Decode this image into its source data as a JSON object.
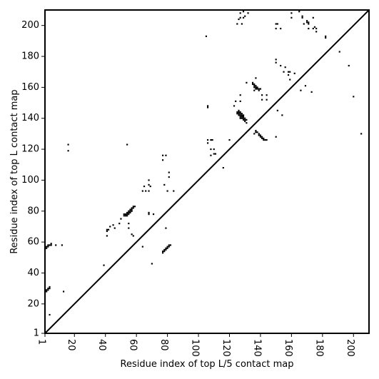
{
  "chart_data": {
    "type": "scatter",
    "title": "",
    "xlabel": "Residue index of top L/5 contact map",
    "ylabel": "Residue index of top L contact map",
    "xlim": [
      1,
      210
    ],
    "ylim": [
      1,
      210
    ],
    "xticks": [
      {
        "value": 1,
        "label": "1"
      },
      {
        "value": 20,
        "label": "20"
      },
      {
        "value": 40,
        "label": "40"
      },
      {
        "value": 60,
        "label": "60"
      },
      {
        "value": 80,
        "label": "80"
      },
      {
        "value": 100,
        "label": "100"
      },
      {
        "value": 120,
        "label": "120"
      },
      {
        "value": 140,
        "label": "140"
      },
      {
        "value": 160,
        "label": "160"
      },
      {
        "value": 180,
        "label": "180"
      },
      {
        "value": 200,
        "label": "200"
      }
    ],
    "yticks": [
      {
        "value": 1,
        "label": "1"
      },
      {
        "value": 20,
        "label": "20"
      },
      {
        "value": 40,
        "label": "40"
      },
      {
        "value": 60,
        "label": "60"
      },
      {
        "value": 80,
        "label": "80"
      },
      {
        "value": 100,
        "label": "100"
      },
      {
        "value": 120,
        "label": "120"
      },
      {
        "value": 140,
        "label": "140"
      },
      {
        "value": 160,
        "label": "160"
      },
      {
        "value": 180,
        "label": "180"
      },
      {
        "value": 200,
        "label": "200"
      }
    ],
    "grid": false,
    "diagonal_line": true,
    "point_color": "#000000",
    "points": [
      [
        1,
        55
      ],
      [
        1,
        56
      ],
      [
        2,
        56
      ],
      [
        2,
        57
      ],
      [
        3,
        57
      ],
      [
        3,
        58
      ],
      [
        4,
        58
      ],
      [
        5,
        58
      ],
      [
        5,
        59
      ],
      [
        8,
        58
      ],
      [
        12,
        58
      ],
      [
        1,
        28
      ],
      [
        2,
        28
      ],
      [
        2,
        29
      ],
      [
        3,
        29
      ],
      [
        3,
        30
      ],
      [
        4,
        30
      ],
      [
        4,
        31
      ],
      [
        4,
        13
      ],
      [
        13,
        28
      ],
      [
        16,
        123
      ],
      [
        16,
        119
      ],
      [
        39,
        45
      ],
      [
        41,
        64
      ],
      [
        41,
        67
      ],
      [
        41,
        68
      ],
      [
        42,
        68
      ],
      [
        43,
        70
      ],
      [
        45,
        71
      ],
      [
        46,
        69
      ],
      [
        49,
        72
      ],
      [
        50,
        75
      ],
      [
        52,
        77
      ],
      [
        53,
        77
      ],
      [
        53,
        78
      ],
      [
        54,
        78
      ],
      [
        54,
        79
      ],
      [
        55,
        79
      ],
      [
        55,
        80
      ],
      [
        56,
        80
      ],
      [
        56,
        81
      ],
      [
        57,
        81
      ],
      [
        57,
        82
      ],
      [
        58,
        82
      ],
      [
        58,
        83
      ],
      [
        59,
        83
      ],
      [
        52,
        78
      ],
      [
        54,
        77
      ],
      [
        55,
        78
      ],
      [
        56,
        79
      ],
      [
        57,
        80
      ],
      [
        54,
        123
      ],
      [
        55,
        69
      ],
      [
        55,
        72
      ],
      [
        57,
        65
      ],
      [
        58,
        64
      ],
      [
        64,
        93
      ],
      [
        65,
        96
      ],
      [
        66,
        93
      ],
      [
        68,
        93
      ],
      [
        68,
        97
      ],
      [
        68,
        100
      ],
      [
        68,
        79
      ],
      [
        68,
        78
      ],
      [
        69,
        96
      ],
      [
        70,
        46
      ],
      [
        71,
        78
      ],
      [
        64,
        57
      ],
      [
        77,
        53
      ],
      [
        77,
        54
      ],
      [
        78,
        54
      ],
      [
        78,
        55
      ],
      [
        79,
        55
      ],
      [
        79,
        56
      ],
      [
        80,
        56
      ],
      [
        80,
        57
      ],
      [
        81,
        57
      ],
      [
        81,
        58
      ],
      [
        82,
        58
      ],
      [
        77,
        113
      ],
      [
        77,
        116
      ],
      [
        79,
        116
      ],
      [
        78,
        97
      ],
      [
        79,
        69
      ],
      [
        80,
        93
      ],
      [
        81,
        102
      ],
      [
        81,
        105
      ],
      [
        84,
        93
      ],
      [
        105,
        193
      ],
      [
        106,
        147
      ],
      [
        106,
        148
      ],
      [
        106,
        124
      ],
      [
        106,
        126
      ],
      [
        108,
        126
      ],
      [
        109,
        126
      ],
      [
        108,
        120
      ],
      [
        108,
        116
      ],
      [
        110,
        117
      ],
      [
        110,
        120
      ],
      [
        111,
        117
      ],
      [
        116,
        108
      ],
      [
        120,
        126
      ],
      [
        123,
        148
      ],
      [
        124,
        151
      ],
      [
        125,
        144
      ],
      [
        126,
        144
      ],
      [
        126,
        143
      ],
      [
        127,
        143
      ],
      [
        127,
        142
      ],
      [
        128,
        142
      ],
      [
        128,
        141
      ],
      [
        129,
        141
      ],
      [
        129,
        140
      ],
      [
        130,
        140
      ],
      [
        130,
        139
      ],
      [
        131,
        139
      ],
      [
        130,
        138
      ],
      [
        125,
        143
      ],
      [
        126,
        145
      ],
      [
        127,
        144
      ],
      [
        128,
        143
      ],
      [
        129,
        142
      ],
      [
        127,
        141
      ],
      [
        128,
        140
      ],
      [
        126,
        142
      ],
      [
        127,
        140
      ],
      [
        129,
        139
      ],
      [
        131,
        137
      ],
      [
        127,
        151
      ],
      [
        127,
        155
      ],
      [
        125,
        201
      ],
      [
        126,
        204
      ],
      [
        127,
        205
      ],
      [
        127,
        208
      ],
      [
        128,
        201
      ],
      [
        129,
        205
      ],
      [
        129,
        209
      ],
      [
        130,
        206
      ],
      [
        132,
        208
      ],
      [
        131,
        163
      ],
      [
        135,
        162
      ],
      [
        135,
        163
      ],
      [
        136,
        162
      ],
      [
        136,
        161
      ],
      [
        137,
        161
      ],
      [
        137,
        160
      ],
      [
        137,
        159
      ],
      [
        138,
        160
      ],
      [
        138,
        159
      ],
      [
        139,
        159
      ],
      [
        139,
        158
      ],
      [
        140,
        159
      ],
      [
        136,
        160
      ],
      [
        136,
        158
      ],
      [
        137,
        166
      ],
      [
        136,
        130
      ],
      [
        137,
        131
      ],
      [
        137,
        132
      ],
      [
        138,
        131
      ],
      [
        139,
        130
      ],
      [
        139,
        129
      ],
      [
        140,
        129
      ],
      [
        140,
        128
      ],
      [
        141,
        128
      ],
      [
        141,
        127
      ],
      [
        142,
        127
      ],
      [
        142,
        126
      ],
      [
        143,
        126
      ],
      [
        144,
        126
      ],
      [
        141,
        155
      ],
      [
        141,
        152
      ],
      [
        144,
        152
      ],
      [
        144,
        155
      ],
      [
        151,
        145
      ],
      [
        150,
        128
      ],
      [
        150,
        176
      ],
      [
        150,
        178
      ],
      [
        150,
        198
      ],
      [
        150,
        201
      ],
      [
        151,
        201
      ],
      [
        153,
        174
      ],
      [
        153,
        198
      ],
      [
        154,
        142
      ],
      [
        155,
        170
      ],
      [
        156,
        173
      ],
      [
        158,
        168
      ],
      [
        158,
        170
      ],
      [
        159,
        165
      ],
      [
        159,
        170
      ],
      [
        160,
        208
      ],
      [
        160,
        205
      ],
      [
        162,
        169
      ],
      [
        165,
        209
      ],
      [
        166,
        158
      ],
      [
        167,
        205
      ],
      [
        167,
        206
      ],
      [
        168,
        201
      ],
      [
        169,
        161
      ],
      [
        170,
        202
      ],
      [
        170,
        203
      ],
      [
        171,
        202
      ],
      [
        171,
        201
      ],
      [
        171,
        198
      ],
      [
        173,
        157
      ],
      [
        174,
        205
      ],
      [
        174,
        198
      ],
      [
        176,
        196
      ],
      [
        175,
        199
      ],
      [
        176,
        198
      ],
      [
        182,
        193
      ],
      [
        182,
        192
      ],
      [
        191,
        183
      ],
      [
        197,
        174
      ],
      [
        200,
        154
      ],
      [
        205,
        130
      ]
    ]
  }
}
